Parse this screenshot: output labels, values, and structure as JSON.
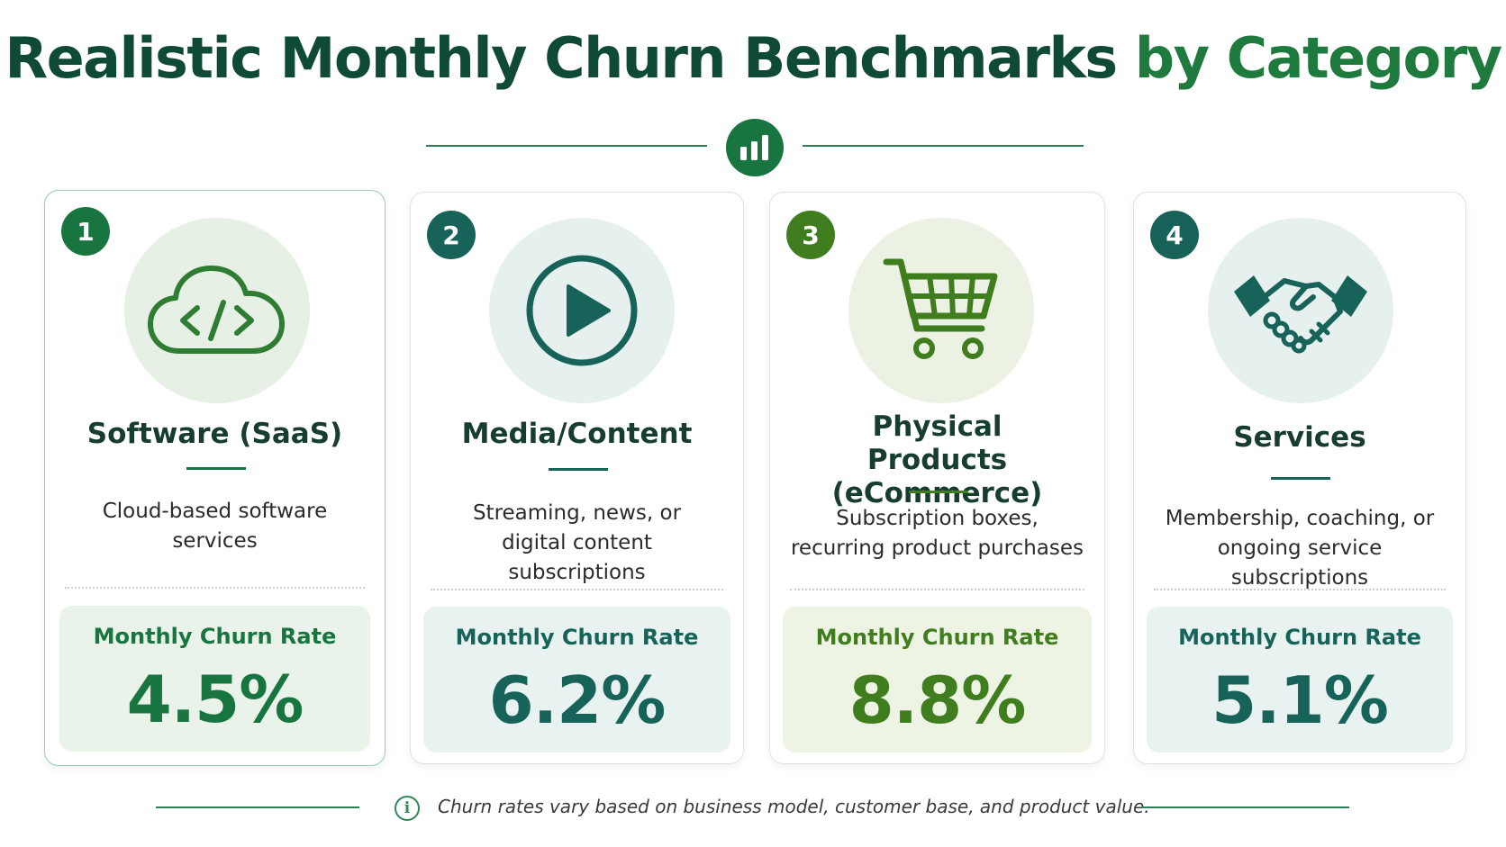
{
  "title": {
    "main": "Realistic Monthly Churn Benchmarks",
    "accent": "by Category"
  },
  "divider": {
    "icon": "bar-chart-icon"
  },
  "cards": [
    {
      "number": "1",
      "icon": "cloud-code-icon",
      "title": "Software (SaaS)",
      "description": "Cloud-based software services",
      "rate_label": "Monthly Churn Rate",
      "rate_value": "4.5%",
      "rate_percent": 4.5,
      "accent_color": "#19753f",
      "circle_color": "#e7f0e5",
      "box_color": "#eaf3ea"
    },
    {
      "number": "2",
      "icon": "play-icon",
      "title": "Media/Content",
      "description": "Streaming, news, or digital content subscriptions",
      "rate_label": "Monthly Churn Rate",
      "rate_value": "6.2%",
      "rate_percent": 6.2,
      "accent_color": "#17635a",
      "circle_color": "#e6f1ef",
      "box_color": "#e8f2f0"
    },
    {
      "number": "3",
      "icon": "shopping-cart-icon",
      "title": "Physical Products (eCommerce)",
      "description": "Subscription boxes, recurring product purchases",
      "rate_label": "Monthly Churn Rate",
      "rate_value": "8.8%",
      "rate_percent": 8.8,
      "accent_color": "#3f7d1e",
      "circle_color": "#ebf2e3",
      "box_color": "#eef4e4"
    },
    {
      "number": "4",
      "icon": "handshake-icon",
      "title": "Services",
      "description": "Membership, coaching, or ongoing service subscriptions",
      "rate_label": "Monthly Churn Rate",
      "rate_value": "5.1%",
      "rate_percent": 5.1,
      "accent_color": "#17635a",
      "circle_color": "#e6f1ef",
      "box_color": "#e8f2f0"
    }
  ],
  "footer": {
    "icon": "info-icon",
    "text": "Churn rates vary based on business model, customer base, and product value."
  }
}
